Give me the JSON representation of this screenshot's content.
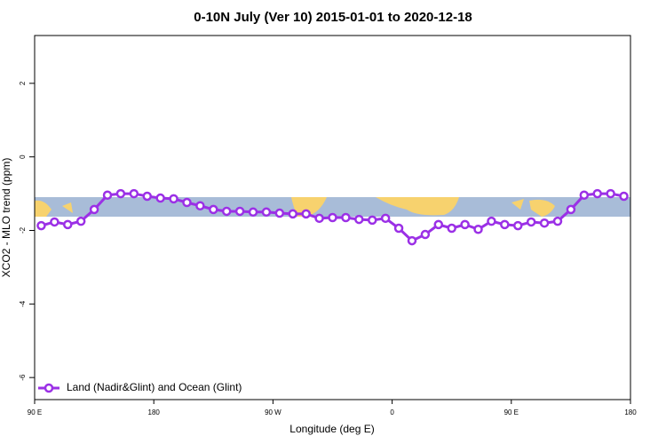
{
  "chart_data": {
    "type": "line",
    "title": "0-10N July (Ver 10)   2015-01-01 to 2020-12-18",
    "x_label": "Longitude (deg E)",
    "y_label": "XCO2 - MLO trend (ppm)",
    "xlim": [
      90,
      540
    ],
    "ylim": [
      -6.6,
      3.3
    ],
    "xticks": [
      {
        "value": 90,
        "label": "90 E"
      },
      {
        "value": 180,
        "label": "180"
      },
      {
        "value": 270,
        "label": "90 W"
      },
      {
        "value": 360,
        "label": "0"
      },
      {
        "value": 450,
        "label": "90 E"
      },
      {
        "value": 540,
        "label": "180"
      }
    ],
    "yticks": [
      -6,
      -4,
      -2,
      0,
      2
    ],
    "legend": "bottom-left",
    "x": [
      95,
      105,
      115,
      125,
      135,
      145,
      155,
      165,
      175,
      185,
      195,
      205,
      215,
      225,
      235,
      245,
      255,
      265,
      275,
      285,
      295,
      305,
      315,
      325,
      335,
      345,
      355,
      365,
      375,
      385,
      395,
      405,
      415,
      425,
      435,
      445,
      455,
      465,
      475,
      485,
      495,
      505,
      515,
      525,
      535
    ],
    "series": [
      {
        "name": "Land (Nadir&Glint) and Ocean (Glint)",
        "color": "#9b30e6",
        "values": [
          -1.87,
          -1.77,
          -1.84,
          -1.75,
          -1.43,
          -1.04,
          -1.0,
          -1.0,
          -1.07,
          -1.12,
          -1.14,
          -1.24,
          -1.33,
          -1.43,
          -1.48,
          -1.48,
          -1.5,
          -1.5,
          -1.53,
          -1.55,
          -1.55,
          -1.67,
          -1.65,
          -1.65,
          -1.7,
          -1.72,
          -1.67,
          -1.94,
          -2.28,
          -2.11,
          -1.84,
          -1.94,
          -1.84,
          -1.97,
          -1.75,
          -1.84,
          -1.87,
          -1.77,
          -1.8,
          -1.75,
          -1.43,
          -1.04,
          -1.0,
          -1.0,
          -1.07
        ]
      }
    ]
  }
}
